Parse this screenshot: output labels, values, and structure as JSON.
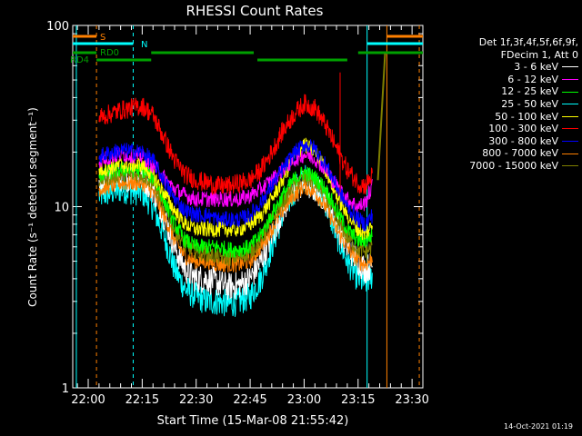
{
  "chart_data": {
    "type": "line",
    "title": "RHESSI Count Rates",
    "xlabel": "Start Time (15-Mar-08 21:55:42)",
    "ylabel": "Count Rate (s⁻¹ detector segment⁻¹)",
    "ylim": [
      1,
      100
    ],
    "yscale": "log",
    "y_ticks": [
      "1",
      "10",
      "100"
    ],
    "x_ticks": [
      "22:00",
      "22:15",
      "22:30",
      "22:45",
      "23:00",
      "23:15",
      "23:30"
    ],
    "x_tick_minutes": [
      0,
      15,
      30,
      45,
      60,
      75,
      90
    ],
    "xlim_minutes": [
      -4.3,
      93
    ],
    "grid": false,
    "legend_position": "right",
    "legend_header": [
      "Det 1f,3f,4f,5f,6f,9f,",
      "FDecim 1, Att 0"
    ],
    "x_minutes": [
      3,
      9,
      15,
      18,
      21,
      24,
      27,
      30,
      33,
      36,
      39,
      42,
      45,
      48,
      51,
      54,
      57,
      60,
      63,
      66,
      69,
      72,
      75,
      77,
      79
    ],
    "series": [
      {
        "name": "3 - 6 keV",
        "color": "#ffffff",
        "values": [
          13.5,
          14.5,
          14.5,
          12.5,
          9,
          6,
          4.5,
          4,
          4,
          3.8,
          3.6,
          3.7,
          4,
          5,
          7,
          9.5,
          12,
          13.5,
          12.5,
          11,
          8,
          6,
          5,
          4.5,
          4.8
        ]
      },
      {
        "name": "6 - 12 keV",
        "color": "#ff00ff",
        "values": [
          18,
          19.5,
          19,
          17,
          14.5,
          12.5,
          11.5,
          11,
          11,
          11,
          11,
          11,
          11.5,
          12.5,
          14,
          16,
          18,
          19.5,
          18.5,
          16,
          13,
          11,
          10,
          10.5,
          13
        ]
      },
      {
        "name": "12 - 25 keV",
        "color": "#00ff00",
        "values": [
          15,
          16,
          16,
          14.5,
          11,
          8,
          6.5,
          6,
          6,
          6,
          5.8,
          5.8,
          6,
          7,
          9,
          11.5,
          14,
          15.5,
          14.5,
          12.5,
          9.5,
          7.5,
          6.5,
          6.5,
          7
        ]
      },
      {
        "name": "25 - 50 keV",
        "color": "#00ffff",
        "values": [
          11.5,
          12.5,
          12,
          10,
          7,
          4.5,
          3.5,
          3.2,
          3,
          3,
          2.9,
          3,
          3.2,
          4,
          6,
          9,
          12,
          14.5,
          13,
          10.5,
          7,
          5,
          4,
          3.8,
          4.2
        ]
      },
      {
        "name": "50 - 100 keV",
        "color": "#ffff00",
        "values": [
          16,
          17,
          17,
          15,
          12,
          9.5,
          8,
          7.5,
          7.5,
          7.5,
          7.5,
          7.5,
          8,
          9,
          11,
          14,
          18.5,
          22,
          20,
          16,
          11.5,
          9,
          7.5,
          7,
          8
        ]
      },
      {
        "name": "100 - 300 keV",
        "color": "#ff0000",
        "values": [
          31,
          34,
          36,
          32,
          24,
          18,
          15,
          14,
          13.5,
          13,
          13,
          13.5,
          14,
          16,
          20,
          26,
          32,
          37,
          35,
          28,
          21,
          16,
          13.5,
          13,
          15
        ]
      },
      {
        "name": "300 - 800 keV",
        "color": "#0000ff",
        "values": [
          19,
          20.5,
          20,
          18,
          14,
          11,
          9.5,
          9,
          9,
          8.5,
          8.5,
          8.5,
          9,
          10.5,
          13,
          16,
          19.5,
          22,
          21,
          17,
          13,
          10,
          8.5,
          8,
          9
        ]
      },
      {
        "name": "800 - 7000 keV",
        "color": "#ff8000",
        "values": [
          12.5,
          13.5,
          13.5,
          12,
          9,
          6.5,
          5.3,
          5,
          5,
          4.8,
          4.8,
          4.8,
          5,
          6,
          7.5,
          9.5,
          11.5,
          13,
          12,
          10,
          7.5,
          6,
          5,
          4.8,
          5.2
        ]
      },
      {
        "name": "7000 - 15000 keV",
        "color": "#808000",
        "values": [
          14,
          15,
          15,
          13.5,
          10,
          7.5,
          6,
          5.6,
          5.5,
          5.3,
          5.2,
          5.3,
          5.6,
          6.5,
          8.5,
          10.5,
          13,
          14.5,
          13.5,
          11.5,
          8.5,
          6.8,
          5.8,
          5.6,
          6
        ]
      }
    ],
    "annotations": [
      {
        "text": "S",
        "color": "#ff8000"
      },
      {
        "text": "N",
        "color": "#00ffff"
      },
      {
        "text": "RD0",
        "color": "#00a000"
      },
      {
        "text": "RD4",
        "color": "#00a000"
      }
    ]
  },
  "timestamp": "14-Oct-2021 01:19"
}
